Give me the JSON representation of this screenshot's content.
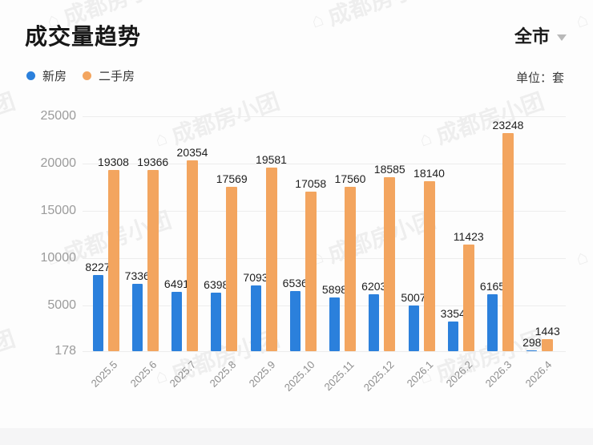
{
  "header": {
    "title": "成交量趋势",
    "region": {
      "label": "全市"
    },
    "unit_label": "单位：套"
  },
  "legend": [
    {
      "label": "新房",
      "color": "#2B80DC"
    },
    {
      "label": "二手房",
      "color": "#F3A55F"
    }
  ],
  "watermark": {
    "logo": "home-pentagon",
    "text": "成都房小团"
  },
  "chart_data": {
    "type": "bar",
    "title": "成交量趋势",
    "region": "全市",
    "unit": "套",
    "categories": [
      "2025.5",
      "2025.6",
      "2025.7",
      "2025.8",
      "2025.9",
      "2025.10",
      "2025.11",
      "2025.12",
      "2026.1",
      "2026.2",
      "2026.3",
      "2026.4"
    ],
    "series": [
      {
        "name": "新房",
        "color": "#2B80DC",
        "values": [
          8227,
          7336,
          6491,
          6398,
          7093,
          6536,
          5898,
          6203,
          5007,
          3354,
          6165,
          298
        ]
      },
      {
        "name": "二手房",
        "color": "#F3A55F",
        "values": [
          19308,
          19366,
          20354,
          17569,
          19581,
          17058,
          17560,
          18585,
          18140,
          11423,
          23248,
          1443
        ]
      }
    ],
    "y_ticks": [
      178,
      5000,
      10000,
      15000,
      20000,
      25000
    ],
    "ylim": [
      178,
      25000
    ],
    "grid": true,
    "legend_position": "top-left",
    "x_label_rotation": -45
  }
}
